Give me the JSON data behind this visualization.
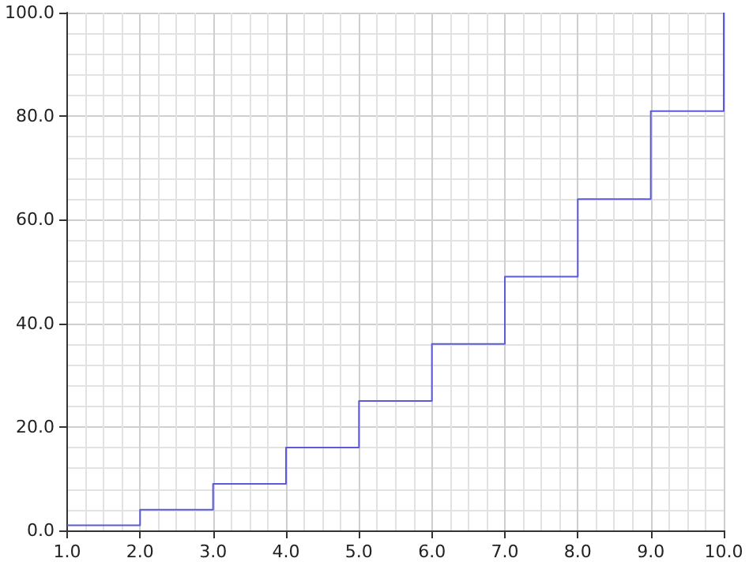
{
  "chart_data": {
    "type": "step",
    "x": [
      1,
      2,
      3,
      4,
      5,
      6,
      7,
      8,
      9,
      10
    ],
    "series": [
      {
        "color": "#5b5bd6",
        "values": [
          1,
          4,
          9,
          16,
          25,
          36,
          49,
          64,
          81,
          100
        ]
      }
    ],
    "xlim": [
      1,
      10
    ],
    "xticks": [
      {
        "value": 1,
        "label": "1.0"
      },
      {
        "value": 2,
        "label": "2.0"
      },
      {
        "value": 3,
        "label": "3.0"
      },
      {
        "value": 4,
        "label": "4.0"
      },
      {
        "value": 5,
        "label": "5.0"
      },
      {
        "value": 6,
        "label": "6.0"
      },
      {
        "value": 7,
        "label": "7.0"
      },
      {
        "value": 8,
        "label": "8.0"
      },
      {
        "value": 9,
        "label": "9.0"
      },
      {
        "value": 10,
        "label": "10.0"
      }
    ],
    "ylim": [
      0,
      100
    ],
    "yticks": [
      {
        "value": 0,
        "label": "0.0"
      },
      {
        "value": 20,
        "label": "20.0"
      },
      {
        "value": 40,
        "label": "40.0"
      },
      {
        "value": 60,
        "label": "60.0"
      },
      {
        "value": 80,
        "label": "80.0"
      },
      {
        "value": 100,
        "label": "100.0"
      }
    ],
    "grid": true
  }
}
